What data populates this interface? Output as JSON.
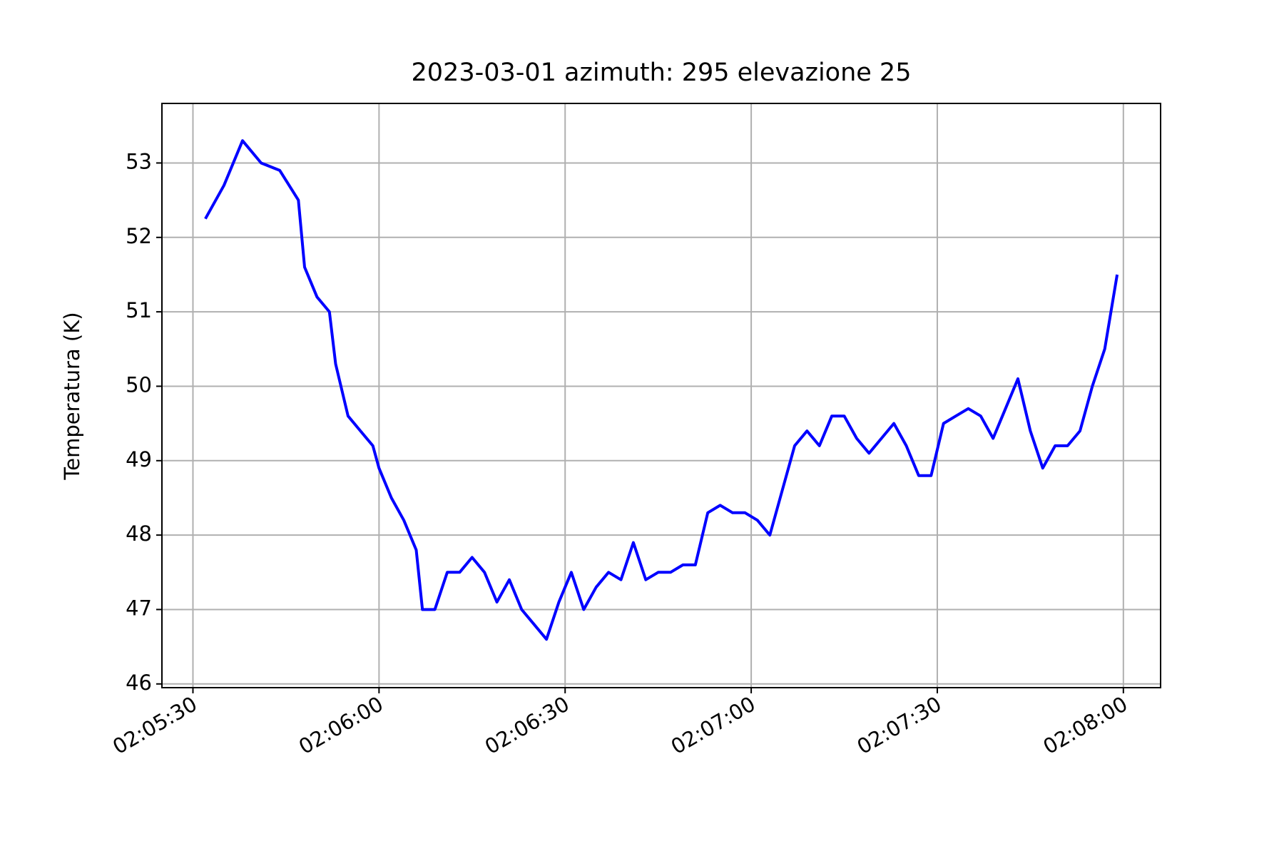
{
  "chart_data": {
    "type": "line",
    "title": "2023-03-01  azimuth: 295 elevazione 25",
    "y_label": "Temperatura (K)",
    "x": [
      "02:05:32",
      "02:05:35",
      "02:05:38",
      "02:05:41",
      "02:05:44",
      "02:05:47",
      "02:05:48",
      "02:05:50",
      "02:05:52",
      "02:05:53",
      "02:05:55",
      "02:05:57",
      "02:05:59",
      "02:06:00",
      "02:06:02",
      "02:06:04",
      "02:06:06",
      "02:06:07",
      "02:06:09",
      "02:06:11",
      "02:06:13",
      "02:06:15",
      "02:06:17",
      "02:06:19",
      "02:06:21",
      "02:06:23",
      "02:06:25",
      "02:06:27",
      "02:06:29",
      "02:06:31",
      "02:06:33",
      "02:06:35",
      "02:06:37",
      "02:06:39",
      "02:06:41",
      "02:06:43",
      "02:06:45",
      "02:06:47",
      "02:06:49",
      "02:06:51",
      "02:06:53",
      "02:06:55",
      "02:06:57",
      "02:06:59",
      "02:07:01",
      "02:07:03",
      "02:07:05",
      "02:07:07",
      "02:07:09",
      "02:07:11",
      "02:07:13",
      "02:07:15",
      "02:07:17",
      "02:07:19",
      "02:07:21",
      "02:07:23",
      "02:07:25",
      "02:07:27",
      "02:07:29",
      "02:07:31",
      "02:07:33",
      "02:07:35",
      "02:07:37",
      "02:07:39",
      "02:07:41",
      "02:07:43",
      "02:07:45",
      "02:07:47",
      "02:07:49",
      "02:07:51",
      "02:07:53",
      "02:07:55",
      "02:07:57",
      "02:07:59"
    ],
    "values": [
      52.25,
      52.7,
      53.3,
      53.0,
      52.9,
      52.5,
      51.6,
      51.2,
      51.0,
      50.3,
      49.6,
      49.4,
      49.2,
      48.9,
      48.5,
      48.2,
      47.8,
      47.0,
      47.0,
      47.5,
      47.5,
      47.7,
      47.5,
      47.1,
      47.4,
      47.0,
      46.8,
      46.6,
      47.1,
      47.5,
      47.0,
      47.3,
      47.5,
      47.4,
      47.9,
      47.4,
      47.5,
      47.5,
      47.6,
      47.6,
      48.3,
      48.4,
      48.3,
      48.3,
      48.2,
      48.0,
      48.6,
      49.2,
      49.4,
      49.2,
      49.6,
      49.6,
      49.3,
      49.1,
      49.3,
      49.5,
      49.2,
      48.8,
      48.8,
      49.5,
      49.6,
      49.7,
      49.6,
      49.3,
      49.7,
      50.1,
      49.4,
      48.9,
      49.2,
      49.2,
      49.4,
      50.0,
      50.5,
      51.5
    ],
    "color": "#0000ff",
    "xlim": [
      "02:05:25",
      "02:08:06"
    ],
    "xticks": [
      "02:05:30",
      "02:06:00",
      "02:06:30",
      "02:07:00",
      "02:07:30",
      "02:08:00"
    ],
    "ylim": [
      45.95,
      53.8
    ],
    "yticks": [
      46,
      47,
      48,
      49,
      50,
      51,
      52,
      53
    ],
    "grid": true
  }
}
